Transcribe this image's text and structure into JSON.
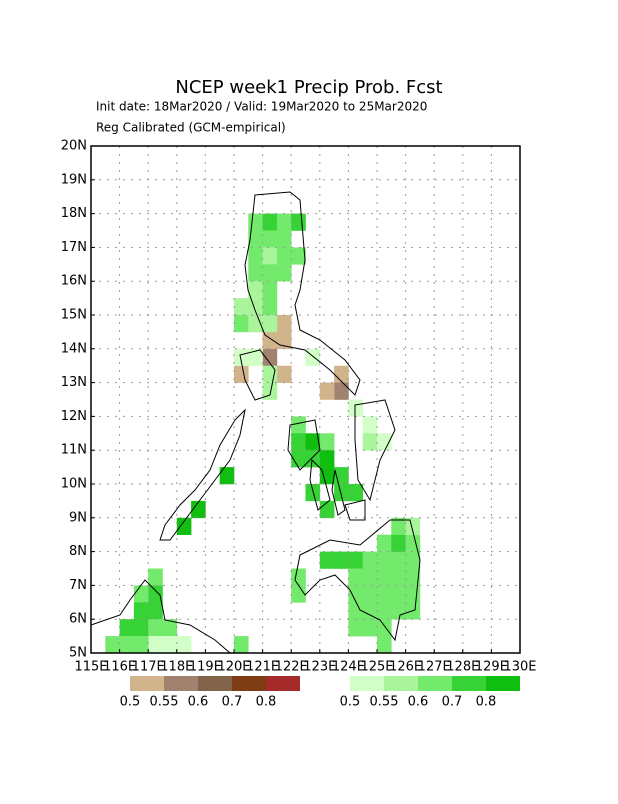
{
  "map": {
    "title": "NCEP week1 Precip Prob. Fcst",
    "subtitle": "Init date: 18Mar2020 / Valid: 19Mar2020 to 25Mar2020",
    "subtitle2": "Reg Calibrated (GCM-empirical)",
    "lonlim": [
      115,
      130
    ],
    "latlim": [
      5,
      20
    ],
    "lon_ticks": [
      {
        "value": 115,
        "label": "115E"
      },
      {
        "value": 116,
        "label": "116E"
      },
      {
        "value": 117,
        "label": "117E"
      },
      {
        "value": 118,
        "label": "118E"
      },
      {
        "value": 119,
        "label": "119E"
      },
      {
        "value": 120,
        "label": "120E"
      },
      {
        "value": 121,
        "label": "121E"
      },
      {
        "value": 122,
        "label": "122E"
      },
      {
        "value": 123,
        "label": "123E"
      },
      {
        "value": 124,
        "label": "124E"
      },
      {
        "value": 125,
        "label": "125E"
      },
      {
        "value": 126,
        "label": "126E"
      },
      {
        "value": 127,
        "label": "127E"
      },
      {
        "value": 128,
        "label": "128E"
      },
      {
        "value": 129,
        "label": "129E"
      },
      {
        "value": 130,
        "label": "130E"
      }
    ],
    "lat_ticks": [
      {
        "value": 5,
        "label": "5N"
      },
      {
        "value": 6,
        "label": "6N"
      },
      {
        "value": 7,
        "label": "7N"
      },
      {
        "value": 8,
        "label": "8N"
      },
      {
        "value": 9,
        "label": "9N"
      },
      {
        "value": 10,
        "label": "10N"
      },
      {
        "value": 11,
        "label": "11N"
      },
      {
        "value": 12,
        "label": "12N"
      },
      {
        "value": 13,
        "label": "13N"
      },
      {
        "value": 14,
        "label": "14N"
      },
      {
        "value": 15,
        "label": "15N"
      },
      {
        "value": 16,
        "label": "16N"
      },
      {
        "value": 17,
        "label": "17N"
      },
      {
        "value": 18,
        "label": "18N"
      },
      {
        "value": 19,
        "label": "19N"
      },
      {
        "value": 20,
        "label": "20N"
      }
    ],
    "cell_size": 0.5,
    "dry_legend": {
      "levels": [
        0.5,
        0.55,
        0.6,
        0.7,
        0.8
      ],
      "colors": [
        "#d2b48c",
        "#a0826e",
        "#82644b",
        "#7d3c14",
        "#a52a2a"
      ]
    },
    "wet_legend": {
      "levels": [
        0.5,
        0.55,
        0.6,
        0.7,
        0.8
      ],
      "colors": [
        "#d2ffc8",
        "#aaf59c",
        "#74ea6c",
        "#36d236",
        "#10be10"
      ]
    },
    "dry_cells": [
      [
        121,
        13.5,
        0.55
      ],
      [
        121,
        14,
        0.5
      ],
      [
        121.5,
        14,
        0.5
      ],
      [
        121.5,
        14.5,
        0.5
      ],
      [
        120,
        13,
        0.5
      ],
      [
        121.5,
        13,
        0.5
      ],
      [
        123.5,
        13,
        0.5
      ],
      [
        123.5,
        12.5,
        0.55
      ],
      [
        123,
        12.5,
        0.5
      ]
    ],
    "wet_cells": [
      [
        120.5,
        17.5,
        0.6
      ],
      [
        121,
        17.5,
        0.7
      ],
      [
        121.5,
        17.5,
        0.6
      ],
      [
        122,
        17.5,
        0.7
      ],
      [
        120.5,
        17,
        0.6
      ],
      [
        121,
        17,
        0.6
      ],
      [
        121.5,
        17,
        0.6
      ],
      [
        120.5,
        16.5,
        0.6
      ],
      [
        121,
        16.5,
        0.55
      ],
      [
        121.5,
        16.5,
        0.6
      ],
      [
        122,
        16.5,
        0.6
      ],
      [
        120.5,
        16,
        0.6
      ],
      [
        121,
        16,
        0.6
      ],
      [
        121.5,
        16,
        0.6
      ],
      [
        120.5,
        15.5,
        0.55
      ],
      [
        121,
        15.5,
        0.6
      ],
      [
        120,
        15,
        0.55
      ],
      [
        120.5,
        15,
        0.55
      ],
      [
        121,
        15,
        0.6
      ],
      [
        120,
        14.5,
        0.6
      ],
      [
        120.5,
        14.5,
        0.55
      ],
      [
        121,
        14.5,
        0.55
      ],
      [
        120,
        13.5,
        0.5
      ],
      [
        120.5,
        13.5,
        0.5
      ],
      [
        122.5,
        13.5,
        0.5
      ],
      [
        121,
        12.5,
        0.55
      ],
      [
        121,
        13,
        0.55
      ],
      [
        122,
        11.5,
        0.6
      ],
      [
        122,
        11,
        0.7
      ],
      [
        122.5,
        11,
        0.8
      ],
      [
        123,
        11,
        0.6
      ],
      [
        122,
        10.5,
        0.7
      ],
      [
        122.5,
        10.5,
        0.7
      ],
      [
        123,
        10.5,
        0.8
      ],
      [
        123,
        10,
        0.8
      ],
      [
        123.5,
        10,
        0.7
      ],
      [
        122.5,
        9.5,
        0.7
      ],
      [
        123.5,
        9.5,
        0.7
      ],
      [
        124,
        9.5,
        0.7
      ],
      [
        123,
        9,
        0.7
      ],
      [
        124.5,
        11.5,
        0.5
      ],
      [
        124.5,
        11,
        0.55
      ],
      [
        125,
        11,
        0.5
      ],
      [
        124,
        12,
        0.5
      ],
      [
        119.5,
        10,
        0.8
      ],
      [
        118.5,
        9,
        0.8
      ],
      [
        118,
        8.5,
        0.8
      ],
      [
        123,
        7.5,
        0.7
      ],
      [
        123.5,
        7.5,
        0.7
      ],
      [
        124,
        7.5,
        0.7
      ],
      [
        124.5,
        7.5,
        0.6
      ],
      [
        125,
        7.5,
        0.6
      ],
      [
        125.5,
        7.5,
        0.6
      ],
      [
        126,
        7.5,
        0.6
      ],
      [
        125,
        8,
        0.6
      ],
      [
        125.5,
        8,
        0.7
      ],
      [
        126,
        8,
        0.6
      ],
      [
        125.5,
        8.5,
        0.6
      ],
      [
        126,
        8.5,
        0.55
      ],
      [
        122,
        6.5,
        0.6
      ],
      [
        122,
        7,
        0.6
      ],
      [
        124,
        7,
        0.6
      ],
      [
        124.5,
        7,
        0.6
      ],
      [
        125,
        7,
        0.6
      ],
      [
        125.5,
        7,
        0.6
      ],
      [
        126,
        7,
        0.6
      ],
      [
        124,
        6.5,
        0.6
      ],
      [
        124.5,
        6.5,
        0.6
      ],
      [
        125,
        6.5,
        0.6
      ],
      [
        125.5,
        6.5,
        0.6
      ],
      [
        126,
        6.5,
        0.6
      ],
      [
        124,
        6,
        0.6
      ],
      [
        124.5,
        6,
        0.6
      ],
      [
        125,
        6,
        0.6
      ],
      [
        125.5,
        6,
        0.6
      ],
      [
        126,
        6,
        0.6
      ],
      [
        124,
        5.5,
        0.6
      ],
      [
        124.5,
        5.5,
        0.6
      ],
      [
        125,
        5.5,
        0.6
      ],
      [
        125,
        5,
        0.6
      ],
      [
        117,
        7,
        0.6
      ],
      [
        117,
        6.5,
        0.7
      ],
      [
        116.5,
        6.5,
        0.6
      ],
      [
        116.5,
        6,
        0.7
      ],
      [
        117,
        6,
        0.7
      ],
      [
        116,
        5.5,
        0.7
      ],
      [
        116.5,
        5.5,
        0.7
      ],
      [
        117,
        5.5,
        0.6
      ],
      [
        117.5,
        5.5,
        0.6
      ],
      [
        117,
        5,
        0.5
      ],
      [
        115.5,
        5,
        0.6
      ],
      [
        116,
        5,
        0.6
      ],
      [
        116.5,
        5,
        0.6
      ],
      [
        117.5,
        5,
        0.5
      ],
      [
        118,
        5,
        0.5
      ],
      [
        120,
        5,
        0.6
      ]
    ]
  }
}
